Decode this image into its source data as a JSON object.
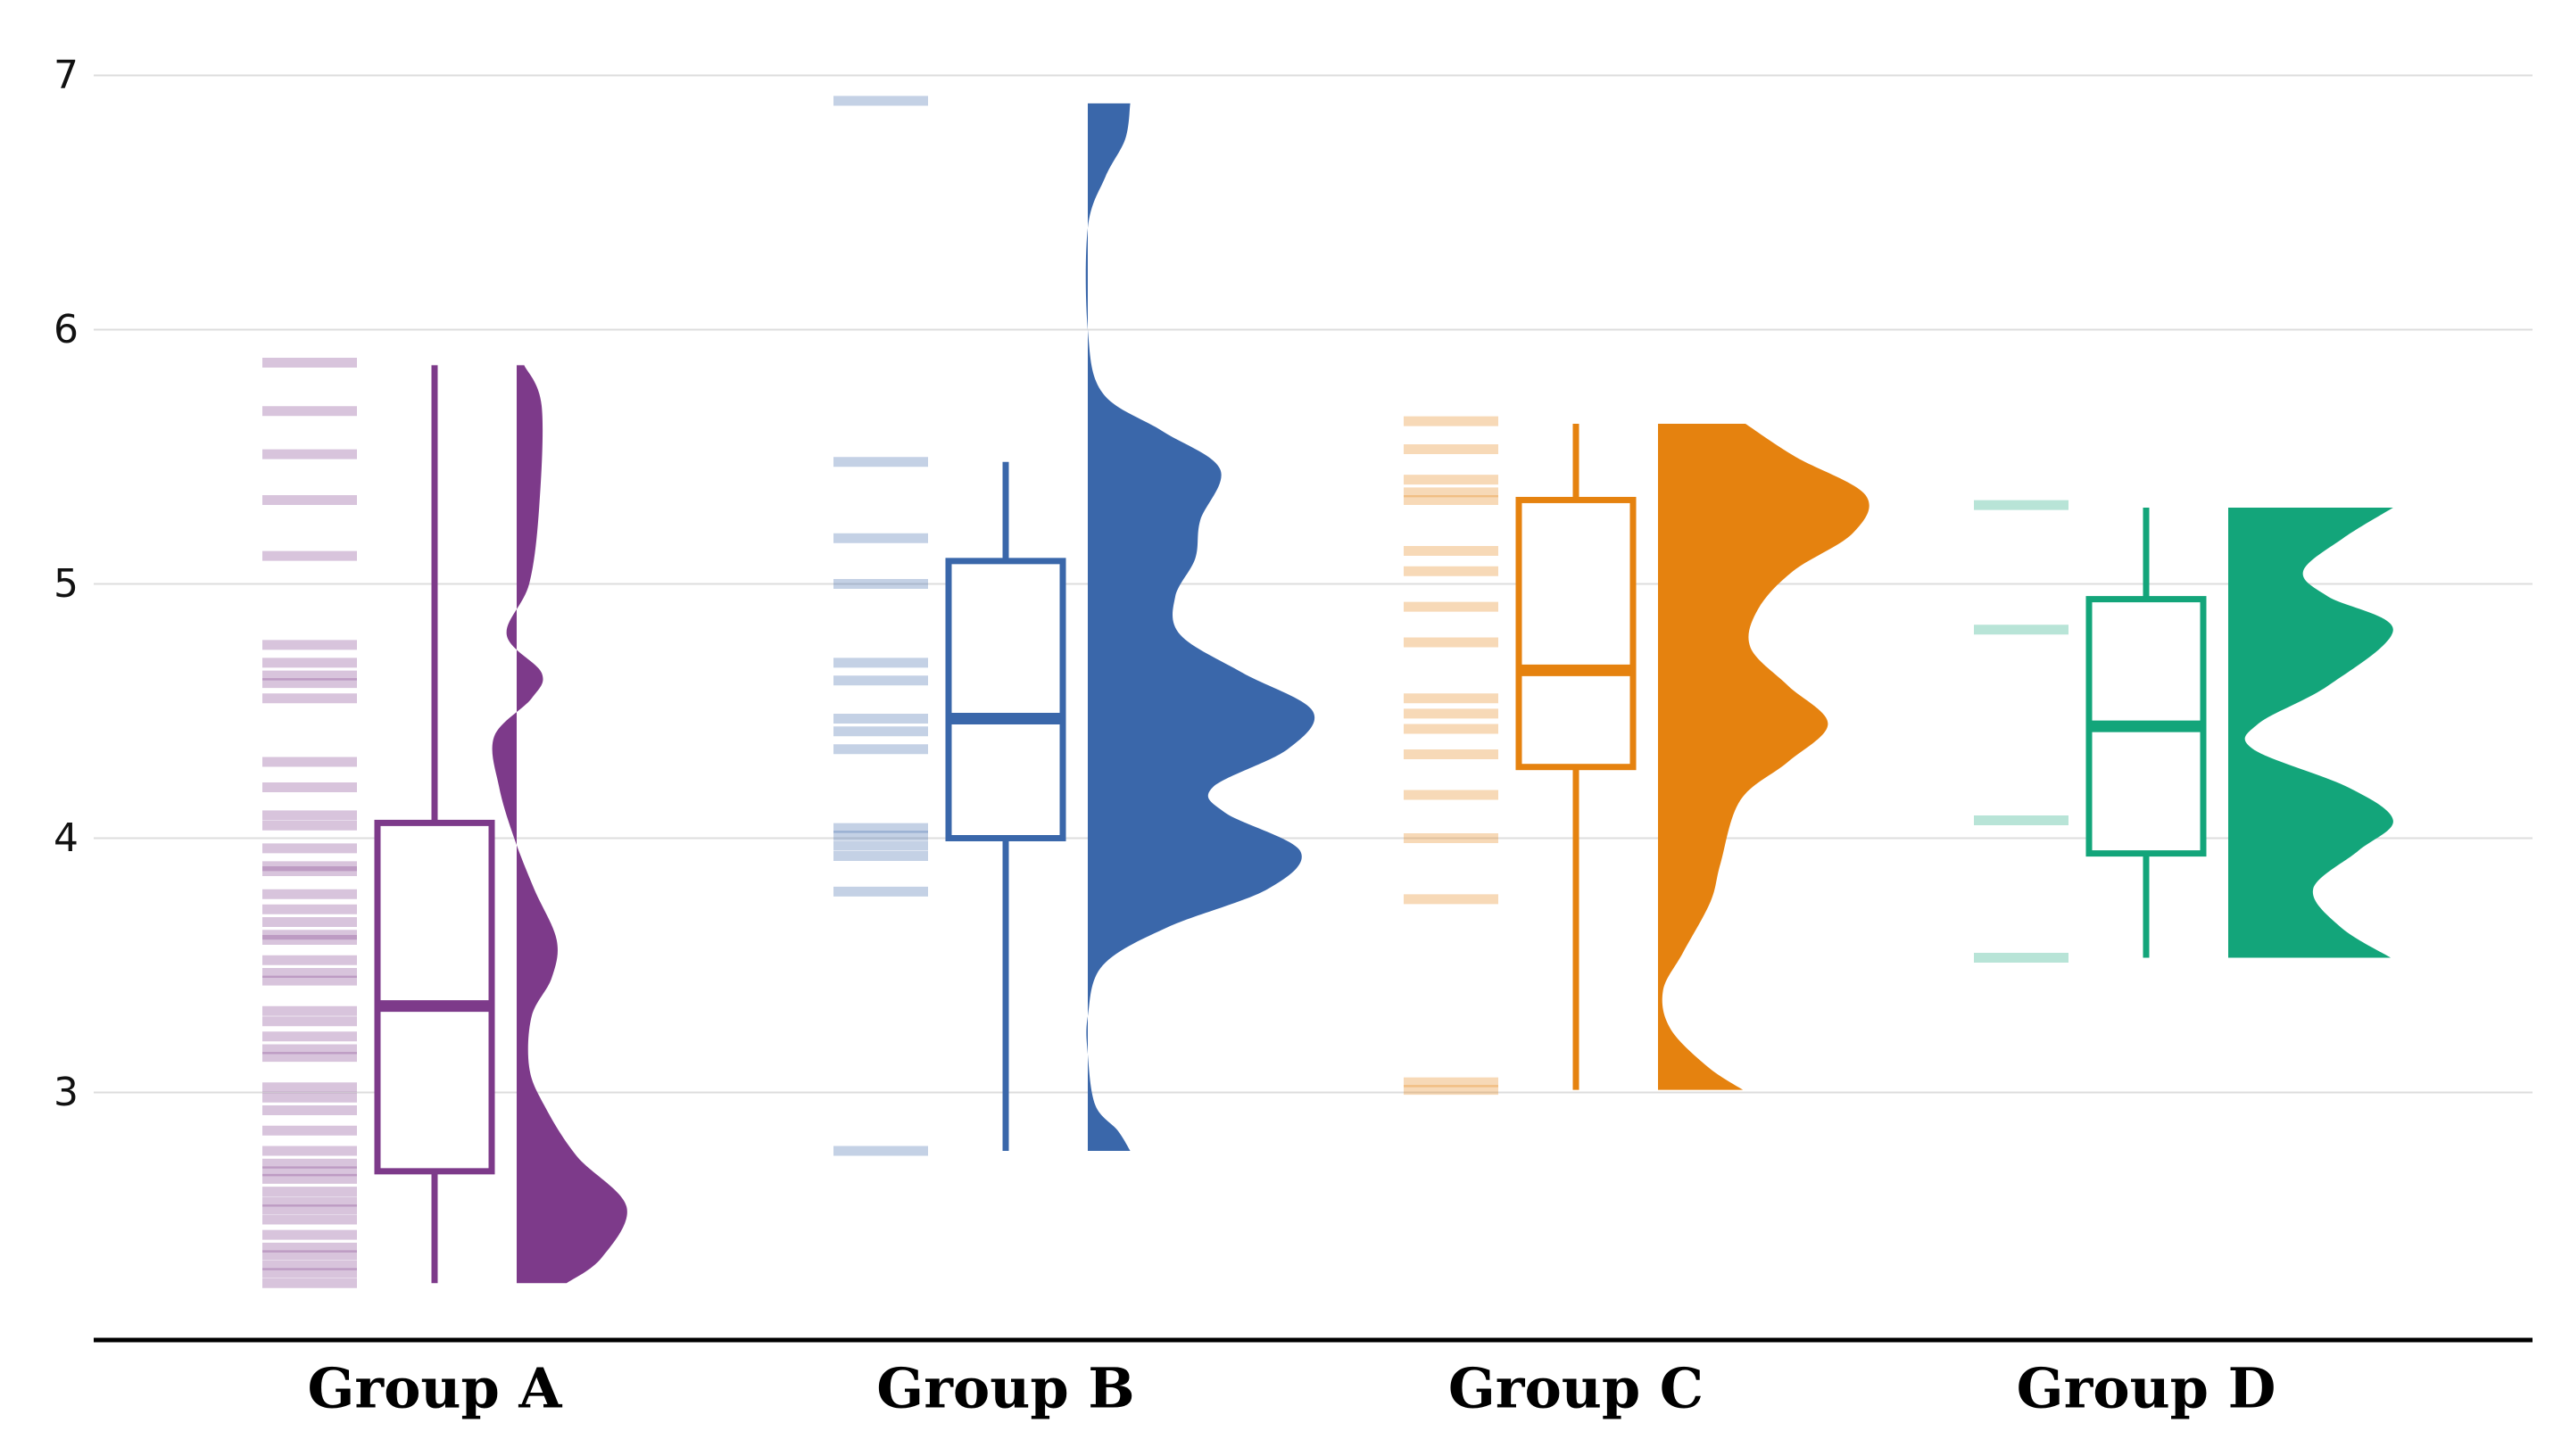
{
  "chart_data": {
    "type": "raincloud",
    "yticks": [
      3,
      4,
      5,
      6,
      7
    ],
    "ylim": [
      2.0,
      7.22
    ],
    "grid": "horizontal",
    "groups": [
      {
        "name": "Group A",
        "color": "#7D3A8A",
        "points": [
          2.25,
          2.29,
          2.32,
          2.36,
          2.39,
          2.44,
          2.5,
          2.54,
          2.57,
          2.61,
          2.66,
          2.69,
          2.72,
          2.77,
          2.85,
          2.93,
          2.98,
          3.02,
          3.14,
          3.17,
          3.22,
          3.28,
          3.32,
          3.44,
          3.47,
          3.52,
          3.6,
          3.62,
          3.67,
          3.72,
          3.78,
          3.87,
          3.89,
          3.96,
          4.05,
          4.09,
          4.2,
          4.3,
          4.55,
          4.61,
          4.64,
          4.69,
          4.76,
          5.11,
          5.33,
          5.51,
          5.68,
          5.87
        ],
        "box": {
          "whisker_low": 2.25,
          "q1": 2.69,
          "median": 3.34,
          "q3": 4.06,
          "whisker_high": 5.86
        },
        "density": [
          [
            2.25,
            0.2
          ],
          [
            2.35,
            0.34
          ],
          [
            2.55,
            0.44
          ],
          [
            2.75,
            0.24
          ],
          [
            2.95,
            0.11
          ],
          [
            3.1,
            0.05
          ],
          [
            3.3,
            0.06
          ],
          [
            3.45,
            0.14
          ],
          [
            3.6,
            0.16
          ],
          [
            3.8,
            0.07
          ],
          [
            4.0,
            -0.01
          ],
          [
            4.2,
            -0.07
          ],
          [
            4.4,
            -0.09
          ],
          [
            4.55,
            0.06
          ],
          [
            4.65,
            0.1
          ],
          [
            4.8,
            -0.04
          ],
          [
            5.0,
            0.05
          ],
          [
            5.3,
            0.09
          ],
          [
            5.7,
            0.1
          ],
          [
            5.86,
            0.03
          ]
        ]
      },
      {
        "name": "Group B",
        "color": "#3A67AA",
        "points": [
          2.77,
          3.79,
          3.93,
          3.97,
          4.01,
          4.04,
          4.35,
          4.42,
          4.47,
          4.62,
          4.69,
          5.0,
          5.18,
          5.48,
          6.9
        ],
        "box": {
          "whisker_low": 2.77,
          "q1": 4.0,
          "median": 4.47,
          "q3": 5.09,
          "whisker_high": 5.48
        },
        "density": [
          [
            2.77,
            0.17
          ],
          [
            2.85,
            0.12
          ],
          [
            2.95,
            0.03
          ],
          [
            3.15,
            0.0
          ],
          [
            3.3,
            0.0
          ],
          [
            3.5,
            0.06
          ],
          [
            3.65,
            0.32
          ],
          [
            3.8,
            0.72
          ],
          [
            3.95,
            0.85
          ],
          [
            4.1,
            0.55
          ],
          [
            4.2,
            0.5
          ],
          [
            4.35,
            0.8
          ],
          [
            4.5,
            0.9
          ],
          [
            4.65,
            0.62
          ],
          [
            4.8,
            0.37
          ],
          [
            4.95,
            0.35
          ],
          [
            5.1,
            0.43
          ],
          [
            5.25,
            0.45
          ],
          [
            5.45,
            0.53
          ],
          [
            5.6,
            0.3
          ],
          [
            5.75,
            0.06
          ],
          [
            6.0,
            0.0
          ],
          [
            6.4,
            0.0
          ],
          [
            6.6,
            0.07
          ],
          [
            6.75,
            0.15
          ],
          [
            6.89,
            0.17
          ]
        ]
      },
      {
        "name": "Group C",
        "color": "#E5820F",
        "points": [
          3.01,
          3.04,
          3.76,
          4.0,
          4.17,
          4.33,
          4.43,
          4.49,
          4.55,
          4.77,
          4.91,
          5.05,
          5.13,
          5.33,
          5.36,
          5.41,
          5.53,
          5.64
        ],
        "box": {
          "whisker_low": 3.01,
          "q1": 4.28,
          "median": 4.66,
          "q3": 5.33,
          "whisker_high": 5.63
        },
        "density": [
          [
            3.01,
            0.34
          ],
          [
            3.1,
            0.2
          ],
          [
            3.25,
            0.05
          ],
          [
            3.4,
            0.02
          ],
          [
            3.55,
            0.1
          ],
          [
            3.75,
            0.21
          ],
          [
            3.9,
            0.25
          ],
          [
            4.15,
            0.33
          ],
          [
            4.3,
            0.52
          ],
          [
            4.45,
            0.68
          ],
          [
            4.6,
            0.52
          ],
          [
            4.75,
            0.37
          ],
          [
            4.9,
            0.4
          ],
          [
            5.05,
            0.54
          ],
          [
            5.2,
            0.78
          ],
          [
            5.35,
            0.83
          ],
          [
            5.5,
            0.55
          ],
          [
            5.63,
            0.35
          ]
        ]
      },
      {
        "name": "Group D",
        "color": "#13A57A",
        "points": [
          3.53,
          4.07,
          4.82,
          5.31
        ],
        "box": {
          "whisker_low": 3.53,
          "q1": 3.94,
          "median": 4.44,
          "q3": 4.94,
          "whisker_high": 5.3
        },
        "density": [
          [
            3.53,
            0.65
          ],
          [
            3.65,
            0.45
          ],
          [
            3.8,
            0.34
          ],
          [
            3.95,
            0.52
          ],
          [
            4.07,
            0.66
          ],
          [
            4.2,
            0.48
          ],
          [
            4.35,
            0.1
          ],
          [
            4.45,
            0.12
          ],
          [
            4.6,
            0.4
          ],
          [
            4.82,
            0.66
          ],
          [
            4.95,
            0.4
          ],
          [
            5.05,
            0.3
          ],
          [
            5.18,
            0.46
          ],
          [
            5.3,
            0.66
          ]
        ]
      }
    ]
  }
}
